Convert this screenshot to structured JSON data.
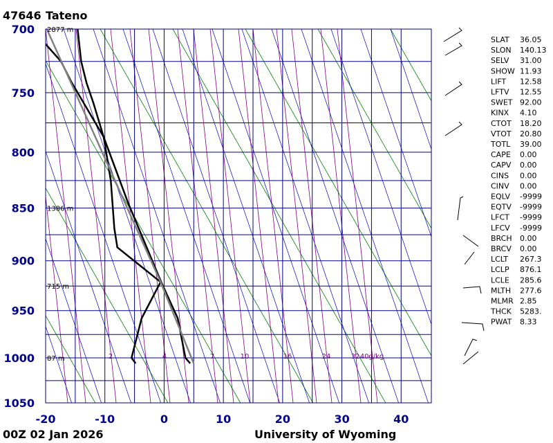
{
  "chart_data": {
    "type": "skewt",
    "title_station": "47646",
    "title_name": "Tateno",
    "footer_time": "00Z 02 Jan 2026",
    "footer_source": "University of Wyoming",
    "xlim": [
      -20,
      45.1
    ],
    "xticks": [
      -20,
      -10,
      0,
      10,
      20,
      30,
      40
    ],
    "minor_xticks": [
      -15,
      -5,
      5,
      15,
      25,
      35
    ],
    "ylim": [
      1050,
      700
    ],
    "yticks": [
      700,
      750,
      800,
      850,
      900,
      950,
      1000,
      1050
    ],
    "minor_yticks": [
      725,
      775,
      825,
      875,
      925,
      975,
      1025
    ],
    "log_y": true,
    "series": [
      {
        "color": "#000000",
        "y": [
          1006,
          1000,
          958,
          921,
          845,
          787,
          741,
          725,
          711
        ],
        "x": [
          4.4,
          3.6,
          2.3,
          -0.5,
          -6.1,
          -10.2,
          -15.7,
          -17.4,
          -20.1
        ]
      },
      {
        "color": "#000000",
        "y": [
          1006,
          1000,
          958,
          921,
          887,
          869,
          825,
          787,
          759,
          742,
          725,
          700
        ],
        "x": [
          -4.8,
          -5.5,
          -3.8,
          -0.6,
          -7.9,
          -8.4,
          -9.0,
          -10.2,
          -11.9,
          -13.1,
          -14.0,
          -14.6
        ]
      },
      {
        "color": "#808080",
        "y": [
          1006,
          921,
          700
        ],
        "x": [
          5.0,
          -0.6,
          -19.8
        ]
      }
    ],
    "height_labels": [
      {
        "pressure": 700,
        "label": "2877 m"
      },
      {
        "pressure": 850,
        "label": "1386 m"
      },
      {
        "pressure": 925,
        "label": "715 m"
      },
      {
        "pressure": 1000,
        "label": "87 m"
      }
    ],
    "mixing_ratio_labels": [
      "2",
      "4",
      "7",
      "10",
      "16",
      "24",
      "32",
      "40g/kg"
    ],
    "indices": [
      [
        "SLAT",
        "36.05"
      ],
      [
        "SLON",
        "140.13"
      ],
      [
        "SELV",
        "31.00"
      ],
      [
        "SHOW",
        "11.93"
      ],
      [
        "LIFT",
        "12.58"
      ],
      [
        "LFTV",
        "12.55"
      ],
      [
        "SWET",
        "92.00"
      ],
      [
        "KINX",
        "4.10"
      ],
      [
        "CTOT",
        "18.20"
      ],
      [
        "VTOT",
        "20.80"
      ],
      [
        "TOTL",
        "39.00"
      ],
      [
        "CAPE",
        "0.00"
      ],
      [
        "CAPV",
        "0.00"
      ],
      [
        "CINS",
        "0.00"
      ],
      [
        "CINV",
        "0.00"
      ],
      [
        "EQLV",
        "-9999"
      ],
      [
        "EQTV",
        "-9999"
      ],
      [
        "LFCT",
        "-9999"
      ],
      [
        "LFCV",
        "-9999"
      ],
      [
        "BRCH",
        "0.00"
      ],
      [
        "BRCV",
        "0.00"
      ],
      [
        "LCLT",
        "267.3"
      ],
      [
        "LCLP",
        "876.1"
      ],
      [
        "LCLE",
        "285.6"
      ],
      [
        "MLTH",
        "277.6"
      ],
      [
        "MLMR",
        "2.85"
      ],
      [
        "THCK",
        "5283."
      ],
      [
        "PWAT",
        "8.33"
      ]
    ]
  }
}
